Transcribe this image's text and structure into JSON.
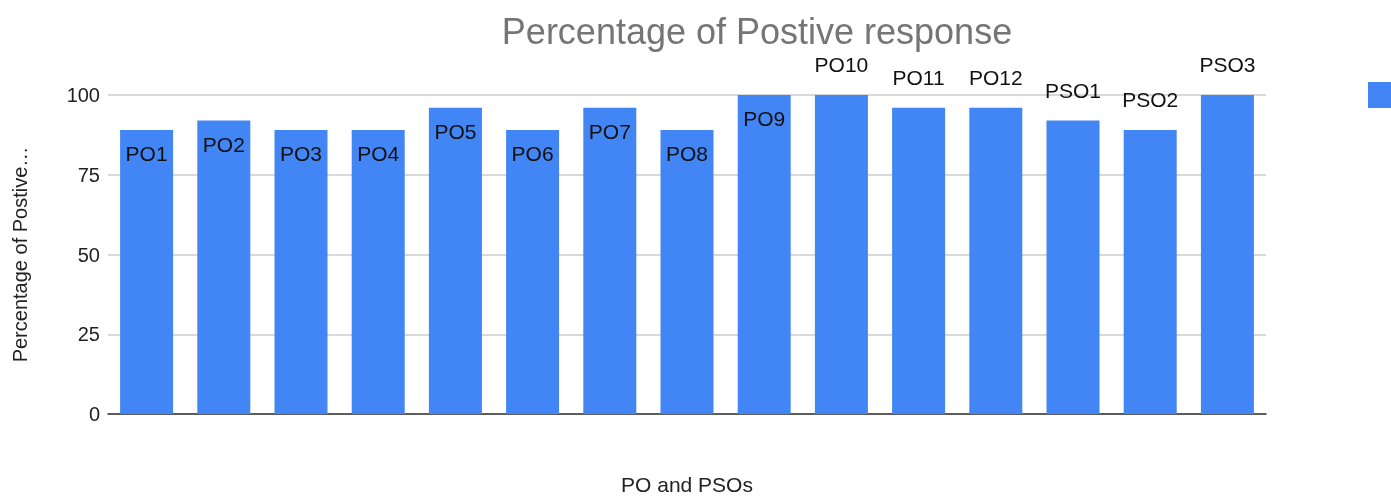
{
  "chart_data": {
    "type": "bar",
    "title": "Percentage of Postive response",
    "xlabel": "PO and PSOs",
    "ylabel": "Percentage of Postive…",
    "categories": [
      "PO1",
      "PO2",
      "PO3",
      "PO4",
      "PO5",
      "PO6",
      "PO7",
      "PO8",
      "PO9",
      "PO10",
      "PO11",
      "PO12",
      "PSO1",
      "PSO2",
      "PSO3"
    ],
    "values": [
      89,
      92,
      89,
      89,
      96,
      89,
      96,
      89,
      100,
      100,
      96,
      96,
      92,
      89,
      100
    ],
    "color": "#4285f4",
    "ylim": [
      0,
      100
    ],
    "yticks": [
      0,
      25,
      50,
      75,
      100
    ],
    "grid": "y",
    "tick_labels": "y"
  }
}
